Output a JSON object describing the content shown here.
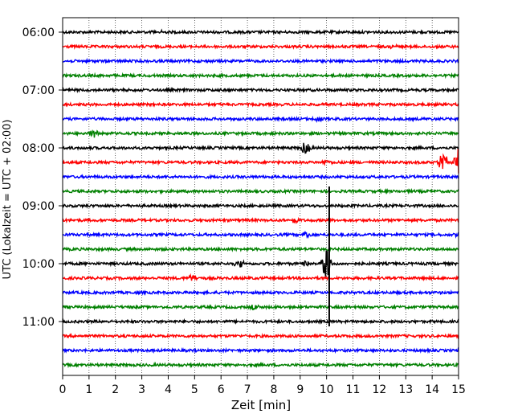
{
  "chart_data": {
    "type": "line",
    "title": "",
    "xlabel": "Zeit  [min]",
    "ylabel": "UTC (Lokalzeit = UTC + 02:00)",
    "xlim": [
      0,
      15
    ],
    "x_ticks": [
      "0",
      "1",
      "2",
      "3",
      "4",
      "5",
      "6",
      "7",
      "8",
      "9",
      "10",
      "11",
      "12",
      "13",
      "14",
      "15"
    ],
    "y_tick_labels": [
      "06:00",
      "07:00",
      "08:00",
      "09:00",
      "10:00",
      "11:00"
    ],
    "trace_interval_min": 15,
    "grid": "vertical dotted",
    "colors": [
      "#000000",
      "#ff0000",
      "#0000ff",
      "#008000"
    ],
    "traces": [
      {
        "start": "06:00",
        "color": "#000000"
      },
      {
        "start": "06:15",
        "color": "#ff0000"
      },
      {
        "start": "06:30",
        "color": "#0000ff"
      },
      {
        "start": "06:45",
        "color": "#008000"
      },
      {
        "start": "07:00",
        "color": "#000000"
      },
      {
        "start": "07:15",
        "color": "#ff0000"
      },
      {
        "start": "07:30",
        "color": "#0000ff"
      },
      {
        "start": "07:45",
        "color": "#008000"
      },
      {
        "start": "08:00",
        "color": "#000000"
      },
      {
        "start": "08:15",
        "color": "#ff0000"
      },
      {
        "start": "08:30",
        "color": "#0000ff"
      },
      {
        "start": "08:45",
        "color": "#008000"
      },
      {
        "start": "09:00",
        "color": "#000000"
      },
      {
        "start": "09:15",
        "color": "#ff0000"
      },
      {
        "start": "09:30",
        "color": "#0000ff"
      },
      {
        "start": "09:45",
        "color": "#008000"
      },
      {
        "start": "10:00",
        "color": "#000000"
      },
      {
        "start": "10:15",
        "color": "#ff0000"
      },
      {
        "start": "10:30",
        "color": "#0000ff"
      },
      {
        "start": "10:45",
        "color": "#008000"
      },
      {
        "start": "11:00",
        "color": "#000000"
      },
      {
        "start": "11:15",
        "color": "#ff0000"
      },
      {
        "start": "11:30",
        "color": "#0000ff"
      },
      {
        "start": "11:45",
        "color": "#008000"
      }
    ],
    "events": [
      {
        "trace": "06:00",
        "x": 3.6,
        "amp": 0.2
      },
      {
        "trace": "06:15",
        "x": 12.6,
        "amp": 0.18
      },
      {
        "trace": "07:45",
        "x": 1.2,
        "amp": 0.3
      },
      {
        "trace": "07:30",
        "x": 9.7,
        "amp": 0.25
      },
      {
        "trace": "08:00",
        "x": 9.2,
        "amp": 0.55
      },
      {
        "trace": "08:15",
        "x": 14.4,
        "amp": 1.0
      },
      {
        "trace": "08:15",
        "x": 15.0,
        "amp": 1.6
      },
      {
        "trace": "08:15",
        "x": 10.0,
        "amp": 0.25
      },
      {
        "trace": "09:15",
        "x": 8.8,
        "amp": 0.3
      },
      {
        "trace": "09:30",
        "x": 9.2,
        "amp": 0.35
      },
      {
        "trace": "09:30",
        "x": 15.0,
        "amp": 0.3
      },
      {
        "trace": "10:00",
        "x": 6.7,
        "amp": 0.35
      },
      {
        "trace": "10:00",
        "x": 10.0,
        "amp": 1.5
      },
      {
        "trace": "10:00",
        "x": 9.2,
        "amp": 0.3
      },
      {
        "trace": "10:15",
        "x": 4.9,
        "amp": 0.3
      },
      {
        "trace": "10:45",
        "x": 7.3,
        "amp": 0.25
      }
    ],
    "spikes": [
      {
        "x": 10.1,
        "from": "08:45",
        "to": "11:00"
      }
    ]
  }
}
